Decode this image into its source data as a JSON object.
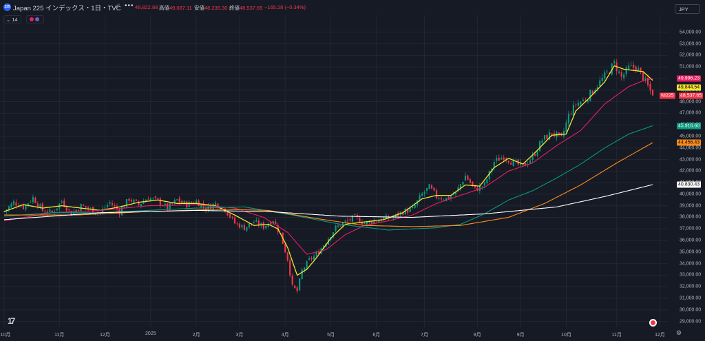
{
  "header": {
    "symbol_badge": "225",
    "title": "Japan 225 インデックス・1日・TVC",
    "fx_icon": "fx-icon",
    "more_label": "•••",
    "open_value": "48,822.88",
    "high_label": "高値",
    "high_value": "49,087.11",
    "low_label": "安値",
    "low_value": "48,235.30",
    "close_label": "終値",
    "close_value": "48,537.65",
    "change": "−165.28 (−0.34%)"
  },
  "indicator_bar": {
    "count_label": "14",
    "collapse_icon": "chevron-down-icon"
  },
  "currency_button": "JPY",
  "colors": {
    "background": "#161a25",
    "up": "#089981",
    "down": "#f23645",
    "ma_yellow": "#f5e52f",
    "ma_pink": "#e91e63",
    "ma_teal": "#089981",
    "ma_orange": "#ff8c1a",
    "ma_white": "#ffffff"
  },
  "price_labels": {
    "pink": "49,996.23",
    "yellow": "49,844.54",
    "symbol": "NI225",
    "last": "48,537.65",
    "teal": "45,916.60",
    "orange": "44,456.43",
    "white": "40,830.43"
  },
  "chart_data": {
    "type": "candlestick",
    "ylim": [
      28800,
      55000
    ],
    "y_ticks": [
      {
        "value": 29000,
        "label": "29,000.00"
      },
      {
        "value": 30000,
        "label": "30,000.00"
      },
      {
        "value": 31000,
        "label": "31,000.00"
      },
      {
        "value": 32000,
        "label": "32,000.00"
      },
      {
        "value": 33000,
        "label": "33,000.00"
      },
      {
        "value": 34000,
        "label": "34,000.00"
      },
      {
        "value": 35000,
        "label": "35,000.00"
      },
      {
        "value": 36000,
        "label": "36,000.00"
      },
      {
        "value": 37000,
        "label": "37,000.00"
      },
      {
        "value": 38000,
        "label": "38,000.00"
      },
      {
        "value": 39000,
        "label": "39,000.00"
      },
      {
        "value": 40000,
        "label": "40,000.00"
      },
      {
        "value": 41000,
        "label": "41,000.00"
      },
      {
        "value": 42000,
        "label": "42,000.00"
      },
      {
        "value": 43000,
        "label": "43,000.00"
      },
      {
        "value": 44000,
        "label": "44,000.00"
      },
      {
        "value": 45000,
        "label": "45,000.00"
      },
      {
        "value": 46000,
        "label": "46,000.00"
      },
      {
        "value": 47000,
        "label": "47,000.00"
      },
      {
        "value": 48000,
        "label": "48,000.00"
      },
      {
        "value": 49000,
        "label": "49,000.00"
      },
      {
        "value": 50000,
        "label": "50,000.00"
      },
      {
        "value": 51000,
        "label": "51,000.00"
      },
      {
        "value": 52000,
        "label": "52,000.00"
      },
      {
        "value": 53000,
        "label": "53,000.00"
      },
      {
        "value": 54000,
        "label": "54,000.00"
      }
    ],
    "x_ticks": [
      {
        "t": 0,
        "label": "10月"
      },
      {
        "t": 23,
        "label": "11月"
      },
      {
        "t": 42,
        "label": "12月"
      },
      {
        "t": 61,
        "label": "2025"
      },
      {
        "t": 80,
        "label": "2月"
      },
      {
        "t": 98,
        "label": "3月"
      },
      {
        "t": 117,
        "label": "4月"
      },
      {
        "t": 136,
        "label": "5月"
      },
      {
        "t": 155,
        "label": "6月"
      },
      {
        "t": 175,
        "label": "7月"
      },
      {
        "t": 197,
        "label": "8月"
      },
      {
        "t": 215,
        "label": "9月"
      },
      {
        "t": 234,
        "label": "10月"
      },
      {
        "t": 255,
        "label": "11月"
      },
      {
        "t": 273,
        "label": "12月"
      }
    ],
    "x_range": [
      0,
      276
    ],
    "closes_keypoints": [
      [
        0,
        38500
      ],
      [
        4,
        39300
      ],
      [
        8,
        38900
      ],
      [
        12,
        39700
      ],
      [
        16,
        38600
      ],
      [
        20,
        38400
      ],
      [
        24,
        39400
      ],
      [
        28,
        38300
      ],
      [
        32,
        39000
      ],
      [
        36,
        38700
      ],
      [
        40,
        38400
      ],
      [
        44,
        39300
      ],
      [
        48,
        38500
      ],
      [
        52,
        39600
      ],
      [
        56,
        39100
      ],
      [
        60,
        39700
      ],
      [
        64,
        39400
      ],
      [
        68,
        38800
      ],
      [
        72,
        39500
      ],
      [
        76,
        39100
      ],
      [
        80,
        39400
      ],
      [
        84,
        38800
      ],
      [
        88,
        39200
      ],
      [
        92,
        38700
      ],
      [
        96,
        37500
      ],
      [
        100,
        37100
      ],
      [
        104,
        37600
      ],
      [
        108,
        37200
      ],
      [
        112,
        37800
      ],
      [
        115,
        36500
      ],
      [
        118,
        34400
      ],
      [
        120,
        32000
      ],
      [
        122,
        31600
      ],
      [
        124,
        33400
      ],
      [
        127,
        34300
      ],
      [
        130,
        34800
      ],
      [
        134,
        35900
      ],
      [
        138,
        37100
      ],
      [
        142,
        37600
      ],
      [
        146,
        38000
      ],
      [
        150,
        37500
      ],
      [
        154,
        37700
      ],
      [
        158,
        37900
      ],
      [
        162,
        38000
      ],
      [
        166,
        38500
      ],
      [
        170,
        38700
      ],
      [
        174,
        40000
      ],
      [
        177,
        40600
      ],
      [
        180,
        39800
      ],
      [
        184,
        39600
      ],
      [
        188,
        40100
      ],
      [
        192,
        41600
      ],
      [
        196,
        40400
      ],
      [
        200,
        40800
      ],
      [
        204,
        42800
      ],
      [
        208,
        43300
      ],
      [
        212,
        42700
      ],
      [
        216,
        42400
      ],
      [
        220,
        43200
      ],
      [
        224,
        44700
      ],
      [
        228,
        45300
      ],
      [
        232,
        44800
      ],
      [
        235,
        46800
      ],
      [
        238,
        47800
      ],
      [
        242,
        48200
      ],
      [
        246,
        49200
      ],
      [
        250,
        50200
      ],
      [
        254,
        51300
      ],
      [
        257,
        50100
      ],
      [
        260,
        50900
      ],
      [
        263,
        51000
      ],
      [
        266,
        50100
      ],
      [
        268,
        49300
      ],
      [
        270,
        48538
      ]
    ],
    "series": [
      {
        "name": "ma_yellow",
        "color": "#f5e52f",
        "points": [
          [
            0,
            38500
          ],
          [
            8,
            39100
          ],
          [
            16,
            38800
          ],
          [
            24,
            39000
          ],
          [
            32,
            38800
          ],
          [
            40,
            38600
          ],
          [
            48,
            38900
          ],
          [
            56,
            39300
          ],
          [
            64,
            39500
          ],
          [
            72,
            39200
          ],
          [
            80,
            39200
          ],
          [
            88,
            39000
          ],
          [
            96,
            38200
          ],
          [
            104,
            37300
          ],
          [
            110,
            37400
          ],
          [
            114,
            37000
          ],
          [
            118,
            35400
          ],
          [
            122,
            33000
          ],
          [
            126,
            33500
          ],
          [
            130,
            34500
          ],
          [
            136,
            36200
          ],
          [
            142,
            37400
          ],
          [
            150,
            37600
          ],
          [
            158,
            37800
          ],
          [
            166,
            38400
          ],
          [
            174,
            39600
          ],
          [
            180,
            39900
          ],
          [
            186,
            39900
          ],
          [
            192,
            40800
          ],
          [
            198,
            40700
          ],
          [
            204,
            42300
          ],
          [
            210,
            43100
          ],
          [
            216,
            42600
          ],
          [
            222,
            43800
          ],
          [
            228,
            45100
          ],
          [
            234,
            45200
          ],
          [
            238,
            47200
          ],
          [
            244,
            48400
          ],
          [
            250,
            49700
          ],
          [
            254,
            51100
          ],
          [
            258,
            50800
          ],
          [
            262,
            50700
          ],
          [
            266,
            50600
          ],
          [
            270,
            49844
          ]
        ]
      },
      {
        "name": "ma_pink",
        "color": "#e91e63",
        "points": [
          [
            0,
            37700
          ],
          [
            20,
            38400
          ],
          [
            40,
            38600
          ],
          [
            60,
            39000
          ],
          [
            80,
            39100
          ],
          [
            96,
            38800
          ],
          [
            108,
            38000
          ],
          [
            118,
            36700
          ],
          [
            126,
            34800
          ],
          [
            134,
            35200
          ],
          [
            142,
            36500
          ],
          [
            150,
            37300
          ],
          [
            160,
            37700
          ],
          [
            170,
            38200
          ],
          [
            180,
            39200
          ],
          [
            190,
            39900
          ],
          [
            200,
            40600
          ],
          [
            210,
            42000
          ],
          [
            220,
            42700
          ],
          [
            230,
            44200
          ],
          [
            240,
            45500
          ],
          [
            250,
            47800
          ],
          [
            260,
            49300
          ],
          [
            266,
            49800
          ],
          [
            270,
            49996
          ]
        ]
      },
      {
        "name": "ma_teal",
        "color": "#089981",
        "points": [
          [
            0,
            38100
          ],
          [
            20,
            38400
          ],
          [
            40,
            38400
          ],
          [
            60,
            38600
          ],
          [
            80,
            38800
          ],
          [
            100,
            38900
          ],
          [
            120,
            38200
          ],
          [
            140,
            37400
          ],
          [
            160,
            36900
          ],
          [
            180,
            37100
          ],
          [
            190,
            37400
          ],
          [
            200,
            38300
          ],
          [
            210,
            39500
          ],
          [
            220,
            40300
          ],
          [
            230,
            41400
          ],
          [
            240,
            42600
          ],
          [
            250,
            44000
          ],
          [
            260,
            45200
          ],
          [
            270,
            45917
          ]
        ]
      },
      {
        "name": "ma_orange",
        "color": "#ff8c1a",
        "points": [
          [
            0,
            38200
          ],
          [
            30,
            38200
          ],
          [
            60,
            38500
          ],
          [
            90,
            38700
          ],
          [
            110,
            38600
          ],
          [
            130,
            37900
          ],
          [
            150,
            37300
          ],
          [
            170,
            37200
          ],
          [
            190,
            37300
          ],
          [
            210,
            38000
          ],
          [
            225,
            39200
          ],
          [
            240,
            40800
          ],
          [
            255,
            42700
          ],
          [
            270,
            44456
          ]
        ]
      },
      {
        "name": "ma_white",
        "color": "#ffffff",
        "points": [
          [
            0,
            37800
          ],
          [
            40,
            38400
          ],
          [
            80,
            38600
          ],
          [
            110,
            38500
          ],
          [
            140,
            38100
          ],
          [
            170,
            38000
          ],
          [
            200,
            38300
          ],
          [
            230,
            38900
          ],
          [
            250,
            39800
          ],
          [
            270,
            40830
          ]
        ]
      }
    ]
  },
  "time_axis_settings_icon": "gear-icon",
  "bottom_logo": "tradingview-logo-icon",
  "bottom_rec_icon": "record-icon"
}
